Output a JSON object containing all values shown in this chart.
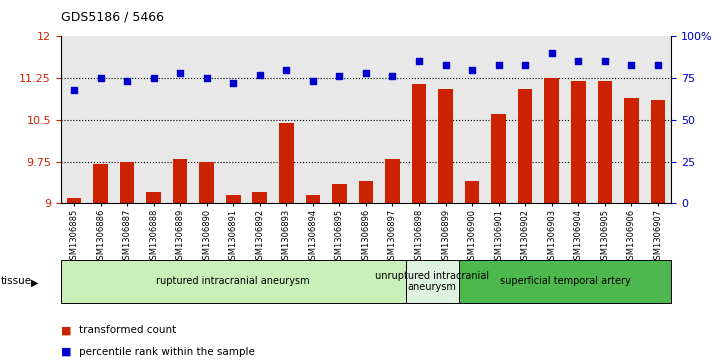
{
  "title": "GDS5186 / 5466",
  "samples": [
    "GSM1306885",
    "GSM1306886",
    "GSM1306887",
    "GSM1306888",
    "GSM1306889",
    "GSM1306890",
    "GSM1306891",
    "GSM1306892",
    "GSM1306893",
    "GSM1306894",
    "GSM1306895",
    "GSM1306896",
    "GSM1306897",
    "GSM1306898",
    "GSM1306899",
    "GSM1306900",
    "GSM1306901",
    "GSM1306902",
    "GSM1306903",
    "GSM1306904",
    "GSM1306905",
    "GSM1306906",
    "GSM1306907"
  ],
  "transformed_count": [
    9.1,
    9.7,
    9.75,
    9.2,
    9.8,
    9.75,
    9.15,
    9.2,
    10.45,
    9.15,
    9.35,
    9.4,
    9.8,
    11.15,
    11.05,
    9.4,
    10.6,
    11.05,
    11.25,
    11.2,
    11.2,
    10.9,
    10.85
  ],
  "percentile_rank": [
    68,
    75,
    73,
    75,
    78,
    75,
    72,
    77,
    80,
    73,
    76,
    78,
    76,
    85,
    83,
    80,
    83,
    83,
    90,
    85,
    85,
    83,
    83
  ],
  "groups": [
    {
      "label": "ruptured intracranial aneurysm",
      "start": 0,
      "end": 13,
      "color": "#c8f0b8"
    },
    {
      "label": "unruptured intracranial\naneurysm",
      "start": 13,
      "end": 15,
      "color": "#dff2df"
    },
    {
      "label": "superficial temporal artery",
      "start": 15,
      "end": 23,
      "color": "#4db84d"
    }
  ],
  "bar_color": "#cc2200",
  "dot_color": "#0000cc",
  "ylim_left": [
    9.0,
    12.0
  ],
  "ylim_right": [
    0,
    100
  ],
  "yticks_left": [
    9.0,
    9.75,
    10.5,
    11.25,
    12.0
  ],
  "ytick_labels_left": [
    "9",
    "9.75",
    "10.5",
    "11.25",
    "12"
  ],
  "yticks_right": [
    0,
    25,
    50,
    75,
    100
  ],
  "ytick_labels_right": [
    "0",
    "25",
    "50",
    "75",
    "100%"
  ],
  "hlines": [
    9.75,
    10.5,
    11.25
  ],
  "background_color": "#e8e8e8",
  "legend_bar_label": "transformed count",
  "legend_dot_label": "percentile rank within the sample"
}
